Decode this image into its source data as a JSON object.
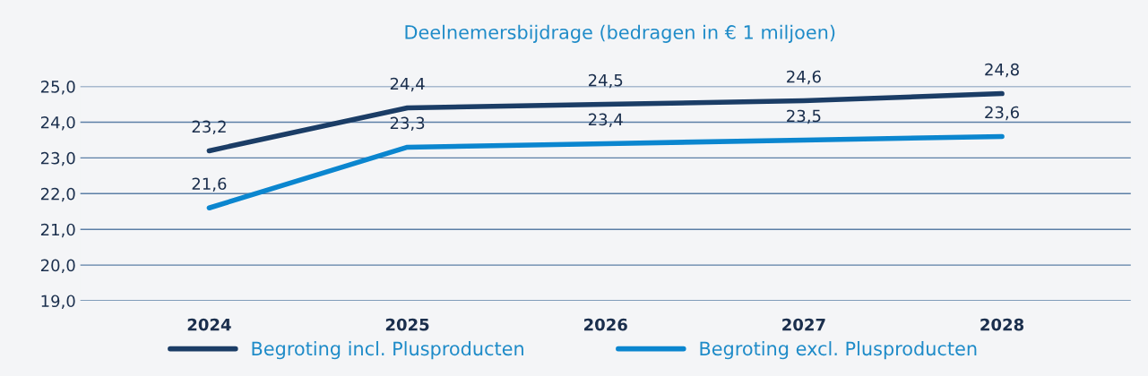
{
  "chart_data": {
    "type": "line",
    "title": "Deelnemersbijdrage (bedragen in € 1 miljoen)",
    "categories": [
      "2024",
      "2025",
      "2026",
      "2027",
      "2028"
    ],
    "series": [
      {
        "name": "Begroting incl. Plusproducten",
        "color": "#1b3d66",
        "values": [
          23.2,
          24.4,
          24.5,
          24.6,
          24.8
        ],
        "value_labels": [
          "23,2",
          "24,4",
          "24,5",
          "24,6",
          "24,8"
        ]
      },
      {
        "name": "Begroting excl. Plusproducten",
        "color": "#0b86cf",
        "values": [
          21.6,
          23.3,
          23.4,
          23.5,
          23.6
        ],
        "value_labels": [
          "21,6",
          "23,3",
          "23,4",
          "23,5",
          "23,6"
        ]
      }
    ],
    "ylim": [
      19,
      25
    ],
    "yticks": [
      {
        "value": 19,
        "label": "19,0"
      },
      {
        "value": 20,
        "label": "20,0"
      },
      {
        "value": 21,
        "label": "21,0"
      },
      {
        "value": 22,
        "label": "22,0"
      },
      {
        "value": 23,
        "label": "23,0"
      },
      {
        "value": 24,
        "label": "24,0"
      },
      {
        "value": 25,
        "label": "25,0"
      }
    ],
    "grid": "y",
    "legend": "bottom",
    "marker": "none",
    "line_style": "solid"
  }
}
